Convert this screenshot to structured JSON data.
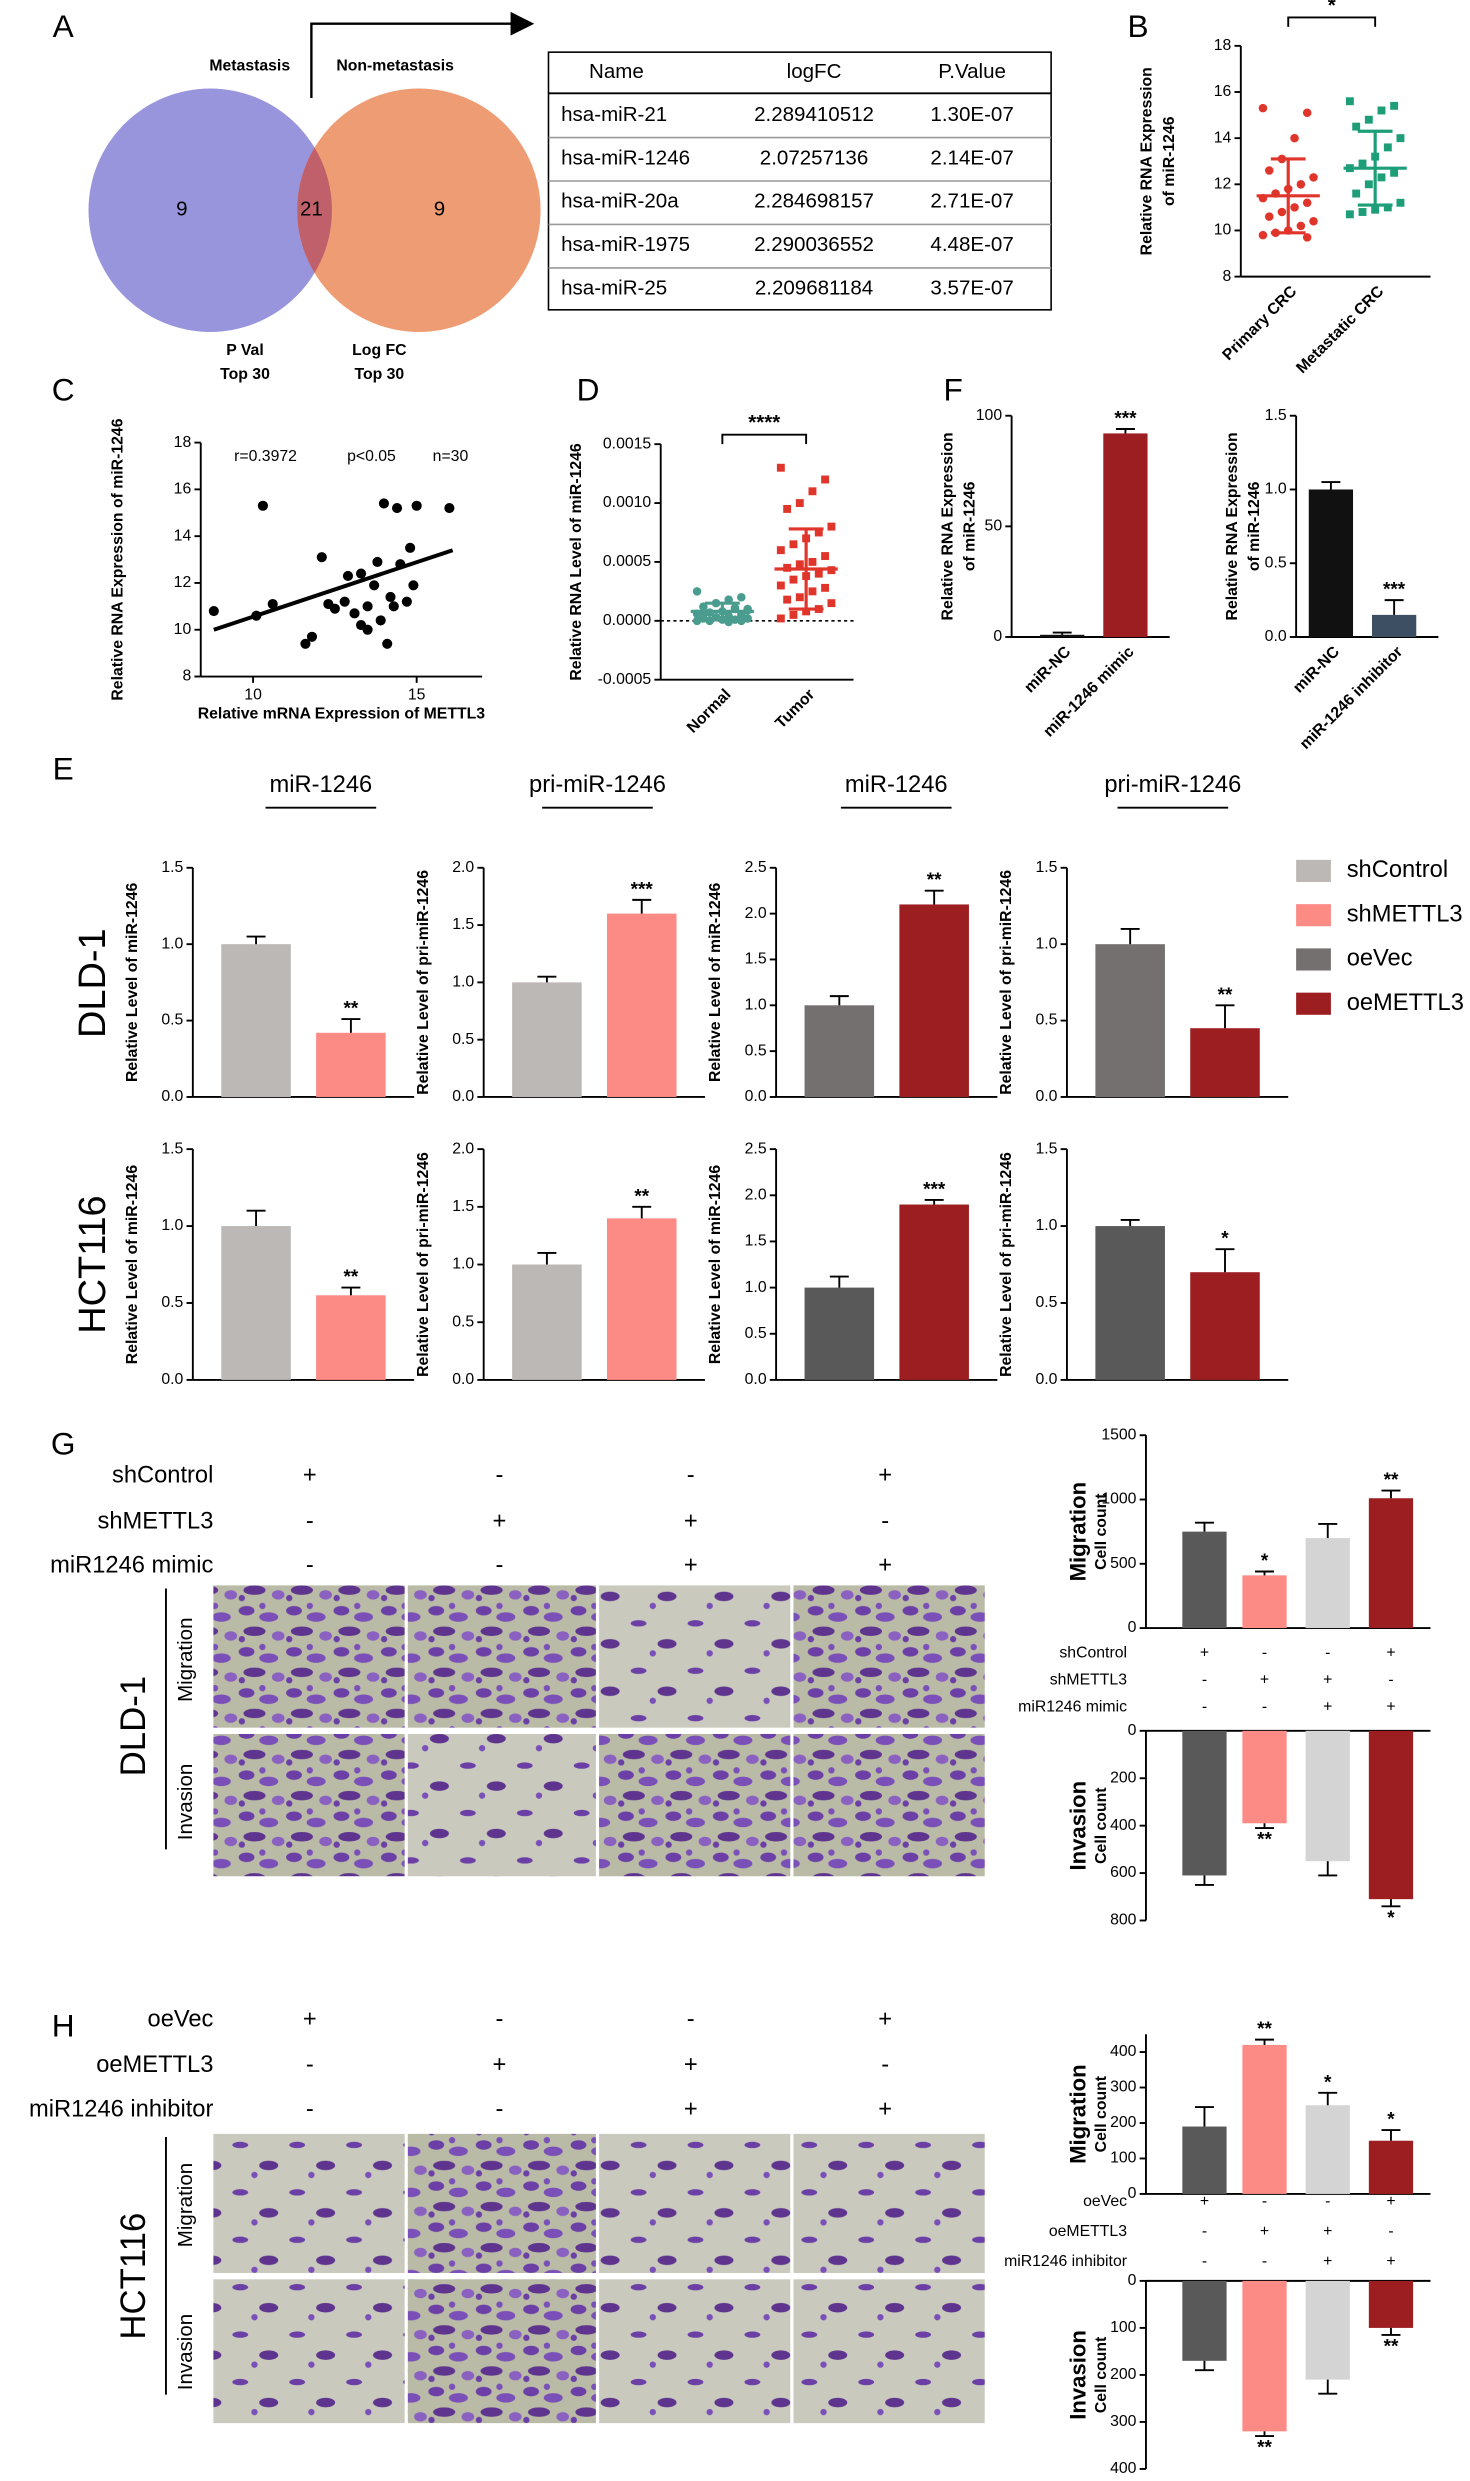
{
  "panel_labels": [
    "A",
    "B",
    "C",
    "D",
    "E",
    "F",
    "G",
    "H"
  ],
  "venn": {
    "left_title": "Metastasis",
    "right_title": "Non-metastasis",
    "left_only": 9,
    "both": 21,
    "right_only": 9,
    "left_label": [
      "P Val",
      "Top 30"
    ],
    "right_label": [
      "Log FC",
      "Top 30"
    ]
  },
  "table": {
    "header": [
      "Name",
      "logFC",
      "P.Value"
    ],
    "rows": [
      [
        "hsa-miR-21",
        "2.289410512",
        "1.30E-07"
      ],
      [
        "hsa-miR-1246",
        "2.07257136",
        "2.14E-07"
      ],
      [
        "hsa-miR-20a",
        "2.284698157",
        "2.71E-07"
      ],
      [
        "hsa-miR-1975",
        "2.290036552",
        "4.48E-07"
      ],
      [
        "hsa-miR-25",
        "2.209681184",
        "3.57E-07"
      ]
    ]
  },
  "E": {
    "headings": [
      "miR-1246",
      "pri-miR-1246",
      "miR-1246",
      "pri-miR-1246"
    ],
    "row_labels": [
      "DLD-1",
      "HCT116"
    ],
    "legend": [
      {
        "name": "shControl",
        "color": "#bcb8b6"
      },
      {
        "name": "shMETTL3",
        "color": "#fc8a85"
      },
      {
        "name": "oeVec",
        "color": "#74706f"
      },
      {
        "name": "oeMETTL3",
        "color": "#9c1e20"
      }
    ]
  },
  "G": {
    "cell_line": "DLD-1",
    "assays": [
      "Migration",
      "Invasion"
    ],
    "conditions": [
      {
        "name": "shControl",
        "signs": [
          "+",
          "-",
          "-",
          "+"
        ]
      },
      {
        "name": "shMETTL3",
        "signs": [
          "-",
          "+",
          "+",
          "-"
        ]
      },
      {
        "name": "miR1246 mimic",
        "signs": [
          "-",
          "-",
          "+",
          "+"
        ]
      }
    ]
  },
  "H": {
    "cell_line": "HCT116",
    "assays": [
      "Migration",
      "Invasion"
    ],
    "conditions": [
      {
        "name": "oeVec",
        "signs": [
          "+",
          "-",
          "-",
          "+"
        ]
      },
      {
        "name": "oeMETTL3",
        "signs": [
          "-",
          "+",
          "+",
          "-"
        ]
      },
      {
        "name": "miR1246 inhibitor",
        "signs": [
          "-",
          "-",
          "+",
          "+"
        ]
      }
    ]
  },
  "chart_data": [
    {
      "type": "dot",
      "categories": [
        "Primary CRC",
        "Metastatic CRC"
      ],
      "ylabel": [
        "Relative RNA Expression",
        "of miR-1246"
      ],
      "groups": [
        {
          "color": "#e0352b",
          "marker": "circle",
          "values": [
            15.3,
            15.1,
            14.0,
            13.1,
            12.6,
            12.3,
            12.0,
            11.8,
            11.6,
            11.4,
            11.2,
            11.0,
            10.8,
            10.6,
            10.4,
            10.2,
            10.0,
            9.9,
            9.8,
            9.7
          ],
          "mean": 11.5,
          "sd": 1.6
        },
        {
          "color": "#1e9e78",
          "marker": "square",
          "values": [
            15.6,
            15.4,
            15.2,
            14.8,
            14.5,
            14.0,
            13.6,
            13.2,
            12.9,
            12.7,
            12.5,
            12.3,
            12.0,
            11.6,
            11.2,
            11.0,
            10.9,
            10.8,
            10.7
          ],
          "mean": 12.7,
          "sd": 1.6
        }
      ],
      "ylim": [
        8,
        18
      ],
      "yticks": [
        8,
        10,
        12,
        14,
        16,
        18
      ],
      "significance": "*"
    },
    {
      "type": "scatter",
      "xlabel": "Relative mRNA Expression of METTL3",
      "ylabel": [
        "Relative RNA Expression of miR-1246"
      ],
      "x": [
        8.8,
        10.1,
        10.6,
        10.3,
        11.6,
        11.8,
        12.1,
        12.3,
        12.5,
        12.8,
        12.9,
        13.1,
        13.3,
        13.3,
        13.5,
        13.5,
        13.7,
        13.8,
        13.9,
        14.0,
        14.2,
        14.3,
        14.4,
        14.5,
        14.7,
        14.8,
        14.9,
        15.0,
        14.1,
        16.0
      ],
      "values": [
        10.8,
        10.6,
        11.1,
        15.3,
        9.4,
        9.7,
        13.1,
        11.1,
        10.9,
        11.2,
        12.3,
        10.7,
        10.2,
        12.4,
        11.0,
        10.0,
        11.9,
        12.9,
        10.4,
        15.4,
        11.4,
        11.0,
        15.2,
        12.8,
        11.2,
        13.5,
        11.9,
        15.3,
        9.4,
        15.2
      ],
      "fit": {
        "x": [
          8.8,
          16.1
        ],
        "y": [
          10.0,
          13.4
        ]
      },
      "color": "#000000",
      "annotations": [
        "r=0.3972",
        "p<0.05",
        "n=30"
      ],
      "xlim": [
        8.4,
        17
      ],
      "xticks": [
        10,
        15
      ],
      "ylim": [
        8,
        18
      ],
      "yticks": [
        8,
        10,
        12,
        14,
        16,
        18
      ]
    },
    {
      "type": "dot",
      "categories": [
        "Normal",
        "Tumor"
      ],
      "ylabel": [
        "Relative RNA Level of miR-1246"
      ],
      "groups": [
        {
          "color": "#4a9d8e",
          "marker": "circle",
          "values": [
            0.00025,
            0.0002,
            0.00018,
            0.00015,
            0.00012,
            0.0001,
            0.0001,
            8e-05,
            7e-05,
            6e-05,
            5e-05,
            4e-05,
            3e-05,
            2e-05,
            2e-05,
            1e-05,
            1e-05,
            0,
            0,
            0,
            -1e-05,
            3e-05,
            6e-05,
            9e-05,
            0.00011
          ],
          "mean": 8e-05,
          "sd": 7e-05
        },
        {
          "color": "#e0352b",
          "marker": "square",
          "values": [
            0.0013,
            0.0012,
            0.0011,
            0.001,
            0.00095,
            0.0008,
            0.00075,
            0.0007,
            0.00065,
            0.0006,
            0.00055,
            0.0005,
            0.00048,
            0.00045,
            0.00043,
            0.0004,
            0.00038,
            0.00035,
            0.0003,
            0.00028,
            0.00025,
            0.0002,
            0.00018,
            0.00015,
            0.0001,
            8e-05,
            5e-05,
            2e-05
          ],
          "mean": 0.00044,
          "sd": 0.00034
        }
      ],
      "ylim": [
        -0.0005,
        0.0015
      ],
      "yticks": [
        -0.0005,
        {
          "value": 0,
          "label": "0.0000"
        },
        0.0005,
        {
          "value": 0.001,
          "label": "0.0010"
        },
        0.0015
      ],
      "significance": "****"
    },
    {
      "type": "bar",
      "categories": [
        "miR-NC",
        "miR-1246 mimic"
      ],
      "ylabel": [
        "Relative RNA Expression",
        "of miR-1246"
      ],
      "values": [
        1,
        92
      ],
      "errors": [
        1,
        2
      ],
      "colors": [
        "#111111",
        "#9c1e20"
      ],
      "significance": [
        null,
        "***"
      ],
      "ylim": [
        0,
        100
      ],
      "yticks": [
        0,
        50,
        100
      ]
    },
    {
      "type": "bar",
      "categories": [
        "miR-NC",
        "miR-1246 inhibitor"
      ],
      "ylabel": [
        "Relative RNA Expression",
        "of miR-1246"
      ],
      "values": [
        1.0,
        0.15
      ],
      "errors": [
        0.05,
        0.1
      ],
      "colors": [
        "#111111",
        "#3d4f63"
      ],
      "significance": [
        null,
        "***"
      ],
      "ylim": [
        0,
        1.5
      ],
      "yticks": [
        {
          "value": 0,
          "label": "0.0"
        },
        0.5,
        {
          "value": 1,
          "label": "1.0"
        },
        1.5
      ]
    },
    {
      "type": "bar",
      "ylabel": [
        "Relative Level of miR-1246"
      ],
      "values": [
        1.0,
        0.42
      ],
      "errors": [
        0.05,
        0.09
      ],
      "colors": [
        "#bcb8b6",
        "#fc8a85"
      ],
      "significance": [
        null,
        "**"
      ],
      "ylim": [
        0,
        1.5
      ],
      "yticks": [
        {
          "value": 0,
          "label": "0.0"
        },
        0.5,
        {
          "value": 1,
          "label": "1.0"
        },
        1.5
      ]
    },
    {
      "type": "bar",
      "ylabel": [
        "Relative Level of pri-miR-1246"
      ],
      "values": [
        1.0,
        1.6
      ],
      "errors": [
        0.05,
        0.12
      ],
      "colors": [
        "#bcb8b6",
        "#fc8a85"
      ],
      "significance": [
        null,
        "***"
      ],
      "ylim": [
        0,
        2
      ],
      "yticks": [
        {
          "value": 0,
          "label": "0.0"
        },
        0.5,
        {
          "value": 1,
          "label": "1.0"
        },
        1.5,
        {
          "value": 2,
          "label": "2.0"
        }
      ]
    },
    {
      "type": "bar",
      "ylabel": [
        "Relative Level of miR-1246"
      ],
      "values": [
        1.0,
        2.1
      ],
      "errors": [
        0.1,
        0.15
      ],
      "colors": [
        "#74706f",
        "#9c1e20"
      ],
      "significance": [
        null,
        "**"
      ],
      "ylim": [
        0,
        2.5
      ],
      "yticks": [
        {
          "value": 0,
          "label": "0.0"
        },
        0.5,
        {
          "value": 1,
          "label": "1.0"
        },
        1.5,
        {
          "value": 2,
          "label": "2.0"
        },
        2.5
      ]
    },
    {
      "type": "bar",
      "ylabel": [
        "Relative Level of pri-miR-1246"
      ],
      "values": [
        1.0,
        0.45
      ],
      "errors": [
        0.1,
        0.15
      ],
      "colors": [
        "#74706f",
        "#9c1e20"
      ],
      "significance": [
        null,
        "**"
      ],
      "ylim": [
        0,
        1.5
      ],
      "yticks": [
        {
          "value": 0,
          "label": "0.0"
        },
        0.5,
        {
          "value": 1,
          "label": "1.0"
        },
        1.5
      ]
    },
    {
      "type": "bar",
      "ylabel": [
        "Relative Level of miR-1246"
      ],
      "values": [
        1.0,
        0.55
      ],
      "errors": [
        0.1,
        0.05
      ],
      "colors": [
        "#bcb8b6",
        "#fc8a85"
      ],
      "significance": [
        null,
        "**"
      ],
      "ylim": [
        0,
        1.5
      ],
      "yticks": [
        {
          "value": 0,
          "label": "0.0"
        },
        0.5,
        {
          "value": 1,
          "label": "1.0"
        },
        1.5
      ]
    },
    {
      "type": "bar",
      "ylabel": [
        "Relative Level of pri-miR-1246"
      ],
      "values": [
        1.0,
        1.4
      ],
      "errors": [
        0.1,
        0.1
      ],
      "colors": [
        "#bcb8b6",
        "#fc8a85"
      ],
      "significance": [
        null,
        "**"
      ],
      "ylim": [
        0,
        2
      ],
      "yticks": [
        {
          "value": 0,
          "label": "0.0"
        },
        0.5,
        {
          "value": 1,
          "label": "1.0"
        },
        1.5,
        {
          "value": 2,
          "label": "2.0"
        }
      ]
    },
    {
      "type": "bar",
      "ylabel": [
        "Relative Level of miR-1246"
      ],
      "values": [
        1.0,
        1.9
      ],
      "errors": [
        0.12,
        0.05
      ],
      "colors": [
        "#595959",
        "#9c1e20"
      ],
      "significance": [
        null,
        "***"
      ],
      "ylim": [
        0,
        2.5
      ],
      "yticks": [
        {
          "value": 0,
          "label": "0.0"
        },
        0.5,
        {
          "value": 1,
          "label": "1.0"
        },
        1.5,
        {
          "value": 2,
          "label": "2.0"
        },
        2.5
      ]
    },
    {
      "type": "bar",
      "ylabel": [
        "Relative Level of pri-miR-1246"
      ],
      "values": [
        1.0,
        0.7
      ],
      "errors": [
        0.04,
        0.15
      ],
      "colors": [
        "#595959",
        "#9c1e20"
      ],
      "significance": [
        null,
        "*"
      ],
      "ylim": [
        0,
        1.5
      ],
      "yticks": [
        {
          "value": 0,
          "label": "0.0"
        },
        0.5,
        {
          "value": 1,
          "label": "1.0"
        },
        1.5
      ]
    },
    {
      "type": "bar",
      "ylabel": [
        "Migration",
        "Cell count"
      ],
      "values": [
        750,
        410,
        700,
        1010
      ],
      "errors": [
        70,
        30,
        110,
        60
      ],
      "colors": [
        "#595959",
        "#fc8a85",
        "#d4d4d4",
        "#9c1e20"
      ],
      "significance": [
        null,
        "*",
        null,
        "**"
      ],
      "ylim": [
        0,
        1500
      ],
      "yticks": [
        0,
        500,
        1000,
        1500
      ]
    },
    {
      "type": "bar",
      "ylabel": [
        "Invasion",
        "Cell count"
      ],
      "y_inverted": true,
      "values": [
        610,
        390,
        550,
        710
      ],
      "errors": [
        40,
        20,
        60,
        30
      ],
      "colors": [
        "#595959",
        "#fc8a85",
        "#d4d4d4",
        "#9c1e20"
      ],
      "significance": [
        null,
        "**",
        null,
        "*"
      ],
      "ylim": [
        0,
        800
      ],
      "yticks": [
        0,
        200,
        400,
        600,
        800
      ]
    },
    {
      "type": "bar",
      "ylabel": [
        "Migration",
        "Cell count"
      ],
      "values": [
        190,
        420,
        250,
        150
      ],
      "errors": [
        55,
        15,
        35,
        30
      ],
      "colors": [
        "#595959",
        "#fc8a85",
        "#d4d4d4",
        "#9c1e20"
      ],
      "significance": [
        null,
        "**",
        "*",
        "*"
      ],
      "ylim": [
        0,
        450
      ],
      "yticks": [
        0,
        100,
        200,
        300,
        400
      ]
    },
    {
      "type": "bar",
      "ylabel": [
        "Invasion",
        "Cell count"
      ],
      "y_inverted": true,
      "values": [
        170,
        320,
        210,
        100
      ],
      "errors": [
        20,
        10,
        30,
        15
      ],
      "colors": [
        "#595959",
        "#fc8a85",
        "#d4d4d4",
        "#9c1e20"
      ],
      "significance": [
        null,
        "**",
        null,
        "**"
      ],
      "ylim": [
        0,
        400
      ],
      "yticks": [
        0,
        100,
        200,
        300,
        400
      ]
    }
  ]
}
